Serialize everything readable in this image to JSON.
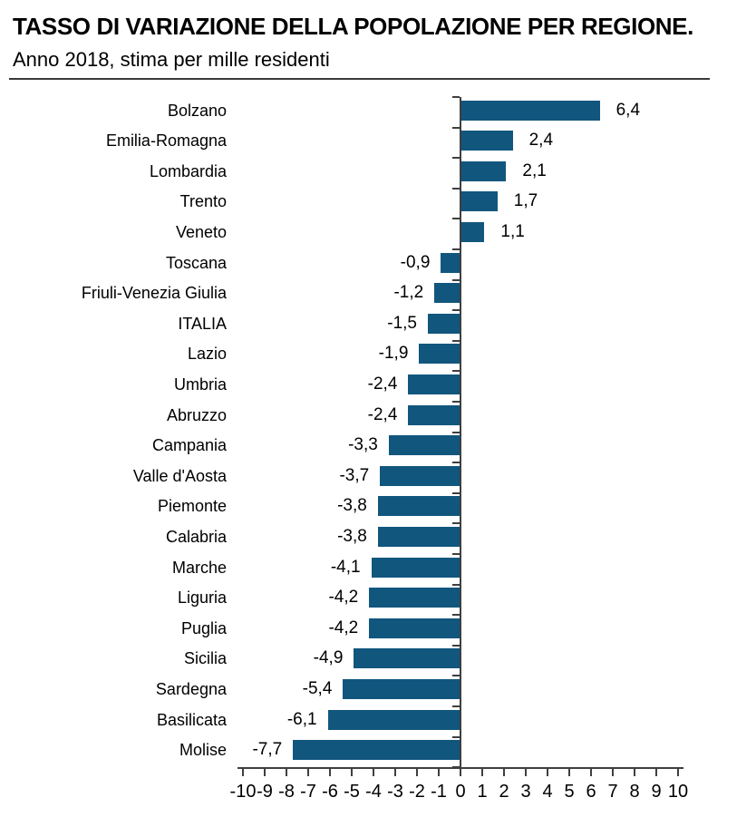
{
  "header": {
    "title": "TASSO DI VARIAZIONE DELLA POPOLAZIONE PER REGIONE.",
    "subtitle": "Anno 2018, stima per mille residenti"
  },
  "chart_data": {
    "type": "bar",
    "orientation": "horizontal",
    "title": "TASSO DI VARIAZIONE DELLA POPOLAZIONE PER REGIONE.",
    "subtitle": "Anno 2018, stima per mille residenti",
    "unit": "per mille residenti",
    "categories": [
      "Bolzano",
      "Emilia-Romagna",
      "Lombardia",
      "Trento",
      "Veneto",
      "Toscana",
      "Friuli-Venezia Giulia",
      "ITALIA",
      "Lazio",
      "Umbria",
      "Abruzzo",
      "Campania",
      "Valle d'Aosta",
      "Piemonte",
      "Calabria",
      "Marche",
      "Liguria",
      "Puglia",
      "Sicilia",
      "Sardegna",
      "Basilicata",
      "Molise"
    ],
    "values": [
      6.4,
      2.4,
      2.1,
      1.7,
      1.1,
      -0.9,
      -1.2,
      -1.5,
      -1.9,
      -2.4,
      -2.4,
      -3.3,
      -3.7,
      -3.8,
      -3.8,
      -4.1,
      -4.2,
      -4.2,
      -4.9,
      -5.4,
      -6.1,
      -7.7
    ],
    "value_labels": [
      "6,4",
      "2,4",
      "2,1",
      "1,7",
      "1,1",
      "-0,9",
      "-1,2",
      "-1,5",
      "-1,9",
      "-2,4",
      "-2,4",
      "-3,3",
      "-3,7",
      "-3,8",
      "-3,8",
      "-4,1",
      "-4,2",
      "-4,2",
      "-4,9",
      "-5,4",
      "-6,1",
      "-7,7"
    ],
    "xlabel": "",
    "ylabel": "",
    "xlim": [
      -10,
      10
    ],
    "x_ticks": [
      -10,
      -9,
      -8,
      -7,
      -6,
      -5,
      -4,
      -3,
      -2,
      -1,
      0,
      1,
      2,
      3,
      4,
      5,
      6,
      7,
      8,
      9,
      10
    ],
    "grid": false,
    "legend": false,
    "bar_color": "#11567D",
    "axis_color": "#3F3F3F",
    "text_color": "#000000"
  }
}
